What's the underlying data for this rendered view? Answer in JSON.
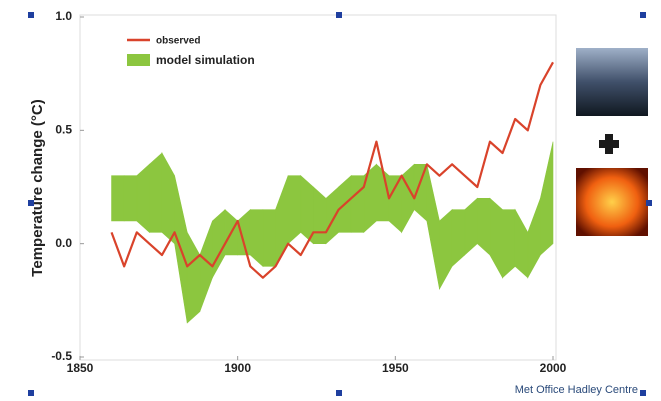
{
  "chart_data": {
    "type": "line",
    "y_label": "Temperature change (°C)",
    "source": "Met Office Hadley Centre",
    "x": [
      1860,
      1864,
      1868,
      1872,
      1876,
      1880,
      1884,
      1888,
      1892,
      1896,
      1900,
      1904,
      1908,
      1912,
      1916,
      1920,
      1924,
      1928,
      1932,
      1936,
      1940,
      1944,
      1948,
      1952,
      1956,
      1960,
      1964,
      1968,
      1972,
      1976,
      1980,
      1984,
      1988,
      1992,
      1996,
      2000
    ],
    "series": [
      {
        "name": "observed",
        "color": "#d9432b",
        "values": [
          0.05,
          -0.1,
          0.05,
          0.0,
          -0.05,
          0.05,
          -0.1,
          -0.05,
          -0.1,
          0.0,
          0.1,
          -0.1,
          -0.15,
          -0.1,
          0.0,
          -0.05,
          0.05,
          0.05,
          0.15,
          0.2,
          0.25,
          0.45,
          0.2,
          0.3,
          0.2,
          0.35,
          0.3,
          0.35,
          0.3,
          0.25,
          0.45,
          0.4,
          0.55,
          0.5,
          0.7,
          0.8
        ]
      },
      {
        "name": "model simulation",
        "color": "#8cc63f",
        "lower": [
          0.1,
          0.1,
          0.1,
          0.05,
          0.05,
          0.0,
          -0.35,
          -0.3,
          -0.15,
          -0.05,
          -0.05,
          -0.05,
          -0.1,
          -0.1,
          0.0,
          0.05,
          0.0,
          0.0,
          0.05,
          0.05,
          0.05,
          0.1,
          0.1,
          0.05,
          0.15,
          0.1,
          -0.2,
          -0.1,
          -0.05,
          0.0,
          -0.05,
          -0.15,
          -0.1,
          -0.15,
          -0.05,
          0.0
        ],
        "upper": [
          0.3,
          0.3,
          0.3,
          0.35,
          0.4,
          0.3,
          0.05,
          -0.05,
          0.1,
          0.15,
          0.1,
          0.15,
          0.15,
          0.15,
          0.3,
          0.3,
          0.25,
          0.2,
          0.25,
          0.3,
          0.3,
          0.35,
          0.3,
          0.3,
          0.35,
          0.35,
          0.1,
          0.15,
          0.15,
          0.2,
          0.2,
          0.15,
          0.15,
          0.05,
          0.2,
          0.45
        ]
      }
    ],
    "xlim": [
      1850,
      2000
    ],
    "xticks": [
      1850,
      1900,
      1950,
      2000
    ],
    "ylim": [
      -0.5,
      1.0
    ],
    "yticks": [
      {
        "value": -0.5,
        "label": "-0.5"
      },
      {
        "value": 0,
        "label": "0.0"
      },
      {
        "value": 0.5,
        "label": "0.5"
      },
      {
        "value": 1,
        "label": "1.0"
      }
    ]
  }
}
